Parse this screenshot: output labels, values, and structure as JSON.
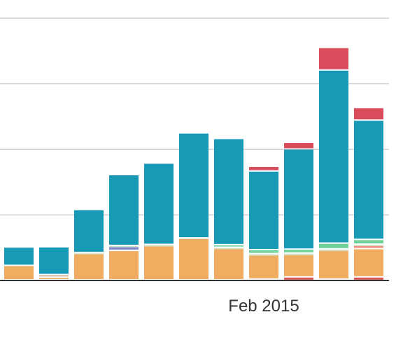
{
  "chart_data": {
    "type": "bar",
    "stacked": true,
    "grid": true,
    "x_tick_labels": [
      {
        "text": "Feb 2015",
        "category_index": 7
      }
    ],
    "ylim": [
      0,
      100
    ],
    "categories": [
      "",
      "",
      "",
      "",
      "",
      "",
      "",
      "",
      "",
      "",
      ""
    ],
    "series": [
      {
        "color": "#e8e8e8",
        "values": [
          0,
          0,
          0,
          0,
          0,
          0,
          0,
          0.3,
          0.3,
          0.3,
          0.3
        ]
      },
      {
        "color": "#d9534f",
        "values": [
          0,
          0,
          0,
          0,
          0,
          0,
          0,
          0,
          0.8,
          0,
          0.8
        ]
      },
      {
        "color": "#efad62",
        "values": [
          5.5,
          1.0,
          10.0,
          11.2,
          13.0,
          15.8,
          12.0,
          9.2,
          8.6,
          11.0,
          10.8
        ]
      },
      {
        "color": "#c9a98a",
        "values": [
          0,
          1.0,
          0,
          0,
          0,
          0,
          0,
          0,
          0,
          0,
          0
        ]
      },
      {
        "color": "#f08a7a",
        "values": [
          0,
          0,
          0,
          0,
          0,
          0,
          0,
          0,
          0,
          0,
          1.2
        ]
      },
      {
        "color": "#8b8bd0",
        "values": [
          0,
          0,
          0,
          1.5,
          0,
          0,
          0,
          0,
          0,
          0,
          0
        ]
      },
      {
        "color": "#cfe0c8",
        "values": [
          0,
          0,
          0.4,
          0.4,
          0.5,
          0.2,
          0.4,
          0.5,
          0.5,
          0.5,
          0.5
        ]
      },
      {
        "color": "#6fd19a",
        "values": [
          0,
          0,
          0,
          0,
          0,
          0,
          1.0,
          1.5,
          1.5,
          2.2,
          1.8
        ]
      },
      {
        "color": "#1899b5",
        "values": [
          7.0,
          10.6,
          16.4,
          27.0,
          31.0,
          40.0,
          40.5,
          30.0,
          38.2,
          66.0,
          45.5
        ]
      },
      {
        "color": "#d94c5c",
        "values": [
          0,
          0,
          0,
          0,
          0,
          0,
          0,
          1.8,
          2.5,
          8.6,
          4.8
        ]
      }
    ]
  }
}
